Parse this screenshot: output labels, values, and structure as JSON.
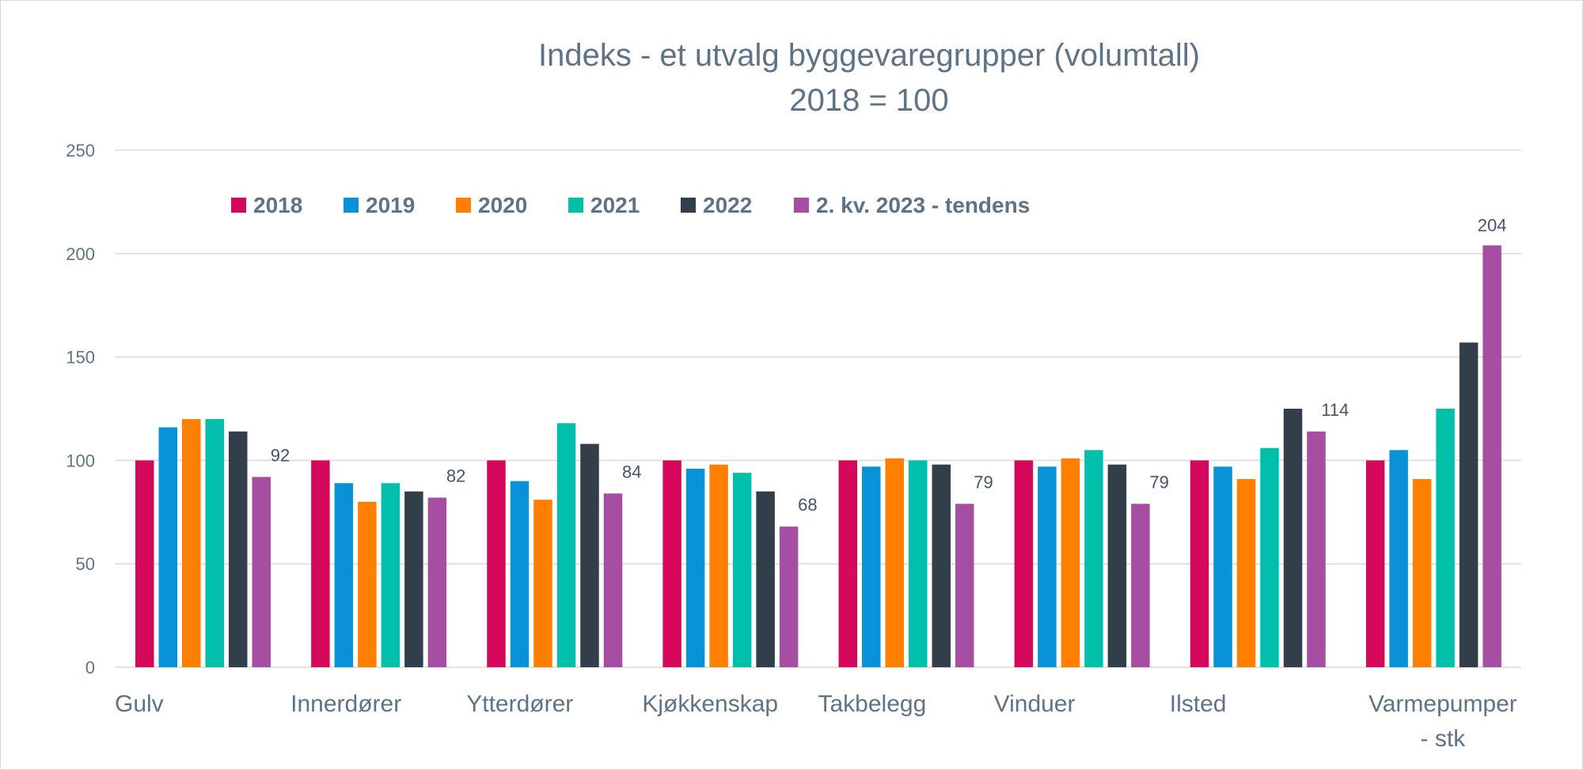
{
  "chart_data": {
    "type": "bar",
    "title": "Indeks - et utvalg byggevaregrupper (volumtall)",
    "subtitle": "2018 = 100",
    "ylim": [
      0,
      250
    ],
    "yticks": [
      0,
      50,
      100,
      150,
      200,
      250
    ],
    "grid": true,
    "legend_position": "top-left",
    "categories": [
      [
        "Gulv"
      ],
      [
        "Innerdører"
      ],
      [
        "Ytterdører"
      ],
      [
        "Kjøkkenskap"
      ],
      [
        "Takbelegg"
      ],
      [
        "Vinduer"
      ],
      [
        "Ilsted"
      ],
      [
        "Varmepumper",
        "- stk"
      ]
    ],
    "series": [
      {
        "name": "2018",
        "color": "#d6085c",
        "values": [
          100,
          100,
          100,
          100,
          100,
          100,
          100,
          100
        ]
      },
      {
        "name": "2019",
        "color": "#0a92d8",
        "values": [
          116,
          89,
          90,
          96,
          97,
          97,
          97,
          105
        ]
      },
      {
        "name": "2020",
        "color": "#ff8000",
        "values": [
          120,
          80,
          81,
          98,
          101,
          101,
          91,
          91
        ]
      },
      {
        "name": "2021",
        "color": "#00c0ac",
        "values": [
          120,
          89,
          118,
          94,
          100,
          105,
          106,
          125
        ]
      },
      {
        "name": "2022",
        "color": "#323e4a",
        "values": [
          114,
          85,
          108,
          85,
          98,
          98,
          125,
          157
        ]
      },
      {
        "name": "2. kv. 2023 - tendens",
        "color": "#a64fa2",
        "values": [
          92,
          82,
          84,
          68,
          79,
          79,
          114,
          204
        ],
        "show_labels": true
      }
    ]
  }
}
